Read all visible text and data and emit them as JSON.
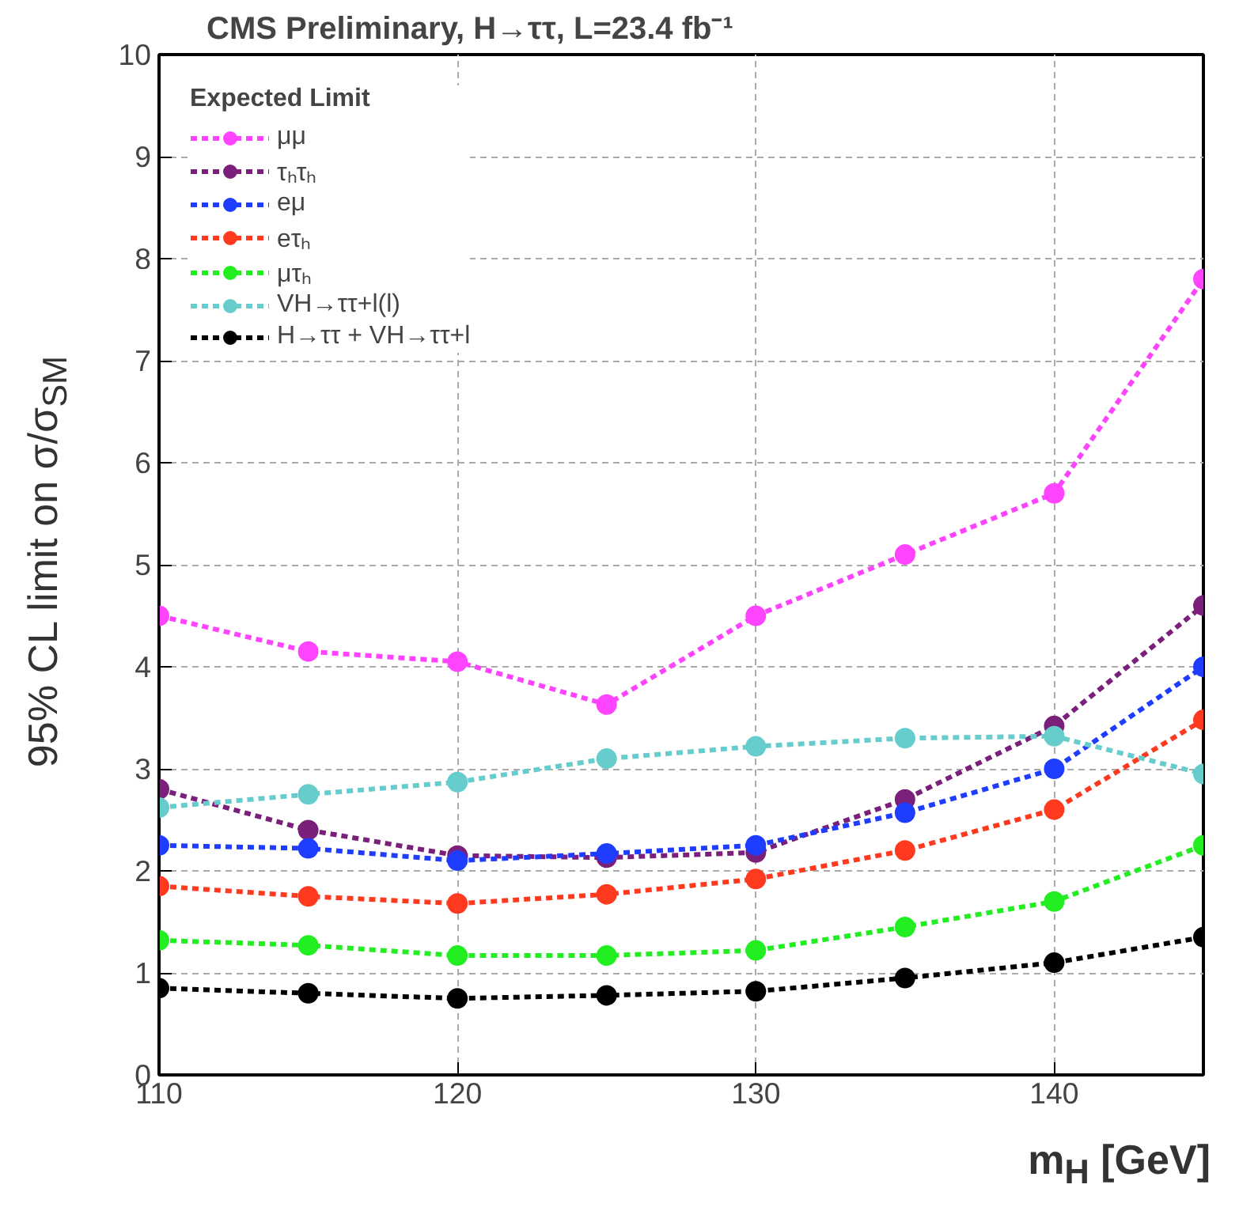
{
  "chart_data": {
    "type": "line",
    "title": "CMS Preliminary, H→ττ, L=23.4 fb⁻¹",
    "xlabel": "m$_{H}$ [GeV]",
    "ylabel": "95% CL limit on σ/σ$_{SM}$",
    "legend_title": "Expected Limit",
    "x": [
      110,
      115,
      120,
      125,
      130,
      135,
      140,
      145
    ],
    "series": [
      {
        "name": "μμ",
        "color": "#ff44ff",
        "values": [
          4.5,
          4.15,
          4.05,
          3.63,
          4.5,
          5.1,
          5.7,
          7.8
        ]
      },
      {
        "name": "τₕτₕ",
        "color": "#7a1f7a",
        "values": [
          2.8,
          2.4,
          2.15,
          2.13,
          2.18,
          2.7,
          3.42,
          4.6
        ]
      },
      {
        "name": "eμ",
        "color": "#1f3dff",
        "values": [
          2.25,
          2.22,
          2.1,
          2.17,
          2.25,
          2.57,
          3.0,
          4.0
        ]
      },
      {
        "name": "eτₕ",
        "color": "#ff3a1f",
        "values": [
          1.85,
          1.75,
          1.68,
          1.77,
          1.92,
          2.2,
          2.6,
          3.48
        ]
      },
      {
        "name": "μτₕ",
        "color": "#22ee22",
        "values": [
          1.32,
          1.27,
          1.17,
          1.17,
          1.22,
          1.45,
          1.7,
          2.25
        ]
      },
      {
        "name": "VH→ττ+l(l)",
        "color": "#66cccc",
        "values": [
          2.62,
          2.75,
          2.87,
          3.1,
          3.22,
          3.3,
          3.32,
          2.95
        ]
      },
      {
        "name": "H→ττ + VH→ττ+l",
        "color": "#000000",
        "values": [
          0.85,
          0.8,
          0.75,
          0.78,
          0.82,
          0.95,
          1.1,
          1.35
        ]
      }
    ],
    "xlim": [
      110,
      145
    ],
    "ylim": [
      0,
      10
    ],
    "xticks": [
      110,
      120,
      130,
      140
    ],
    "yticks": [
      0,
      1,
      2,
      3,
      4,
      5,
      6,
      7,
      8,
      9,
      10
    ],
    "grid": true,
    "legend": "top left",
    "marker": "circle",
    "line_style": "dashed"
  }
}
